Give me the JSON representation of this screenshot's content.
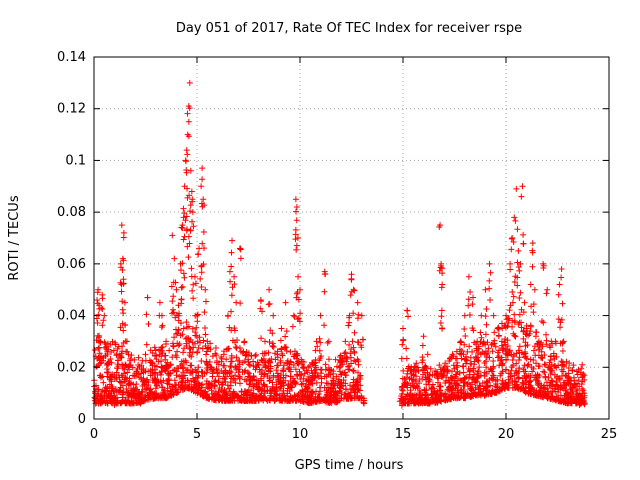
{
  "chart_data": {
    "type": "scatter",
    "title": "Day 051 of 2017, Rate Of TEC Index for receiver rspe",
    "xlabel": "GPS time / hours",
    "ylabel": "ROTI / TECUs",
    "xlim": [
      0,
      25
    ],
    "ylim": [
      0,
      0.14
    ],
    "x_ticks": [
      0,
      5,
      10,
      15,
      20,
      25
    ],
    "x_tick_labels": [
      "0",
      "5",
      "10",
      "15",
      "20",
      "25"
    ],
    "y_ticks": [
      0,
      0.02,
      0.04,
      0.06,
      0.08,
      0.1,
      0.12,
      0.14
    ],
    "y_tick_labels": [
      "0",
      "0.02",
      "0.04",
      "0.06",
      "0.08",
      "0.1",
      "0.12",
      "0.14"
    ],
    "grid": true,
    "marker": "plus",
    "color": "#ff0000",
    "data_gaps_hours": [
      [
        13.2,
        14.8
      ]
    ],
    "series": [
      {
        "points": [
          [
            0.05,
            0.01
          ],
          [
            0.15,
            0.046
          ],
          [
            0.2,
            0.05
          ],
          [
            0.25,
            0.044
          ],
          [
            0.3,
            0.03
          ],
          [
            0.4,
            0.048
          ],
          [
            0.5,
            0.04
          ],
          [
            0.6,
            0.028
          ],
          [
            0.7,
            0.022
          ],
          [
            0.8,
            0.016
          ],
          [
            0.9,
            0.012
          ],
          [
            1.0,
            0.009
          ],
          [
            1.1,
            0.018
          ],
          [
            1.2,
            0.028
          ],
          [
            1.3,
            0.06
          ],
          [
            1.35,
            0.075
          ],
          [
            1.4,
            0.062
          ],
          [
            1.45,
            0.072
          ],
          [
            1.5,
            0.045
          ],
          [
            1.6,
            0.03
          ],
          [
            1.7,
            0.02
          ],
          [
            1.8,
            0.014
          ],
          [
            2.0,
            0.012
          ],
          [
            2.2,
            0.01
          ],
          [
            2.4,
            0.018
          ],
          [
            2.5,
            0.025
          ],
          [
            2.6,
            0.047
          ],
          [
            2.8,
            0.022
          ],
          [
            3.0,
            0.015
          ],
          [
            3.2,
            0.045
          ],
          [
            3.3,
            0.04
          ],
          [
            3.5,
            0.03
          ],
          [
            3.6,
            0.02
          ],
          [
            3.8,
            0.071
          ],
          [
            3.9,
            0.062
          ],
          [
            4.0,
            0.05
          ],
          [
            4.1,
            0.044
          ],
          [
            4.2,
            0.06
          ],
          [
            4.3,
            0.075
          ],
          [
            4.35,
            0.078
          ],
          [
            4.4,
            0.09
          ],
          [
            4.45,
            0.1
          ],
          [
            4.5,
            0.104
          ],
          [
            4.55,
            0.11
          ],
          [
            4.6,
            0.121
          ],
          [
            4.65,
            0.13
          ],
          [
            4.7,
            0.096
          ],
          [
            4.75,
            0.088
          ],
          [
            4.8,
            0.08
          ],
          [
            4.9,
            0.055
          ],
          [
            5.0,
            0.04
          ],
          [
            5.1,
            0.066
          ],
          [
            5.2,
            0.09
          ],
          [
            5.25,
            0.097
          ],
          [
            5.3,
            0.085
          ],
          [
            5.4,
            0.05
          ],
          [
            5.5,
            0.03
          ],
          [
            5.7,
            0.02
          ],
          [
            5.9,
            0.015
          ],
          [
            6.1,
            0.012
          ],
          [
            6.3,
            0.025
          ],
          [
            6.5,
            0.04
          ],
          [
            6.6,
            0.057
          ],
          [
            6.7,
            0.069
          ],
          [
            6.8,
            0.055
          ],
          [
            6.9,
            0.045
          ],
          [
            7.1,
            0.066
          ],
          [
            7.3,
            0.03
          ],
          [
            7.5,
            0.022
          ],
          [
            7.7,
            0.015
          ],
          [
            7.9,
            0.02
          ],
          [
            8.1,
            0.046
          ],
          [
            8.3,
            0.03
          ],
          [
            8.5,
            0.05
          ],
          [
            8.7,
            0.04
          ],
          [
            8.9,
            0.025
          ],
          [
            9.1,
            0.035
          ],
          [
            9.3,
            0.045
          ],
          [
            9.5,
            0.02
          ],
          [
            9.7,
            0.04
          ],
          [
            9.8,
            0.085
          ],
          [
            9.85,
            0.082
          ],
          [
            9.9,
            0.07
          ],
          [
            10.0,
            0.05
          ],
          [
            10.2,
            0.02
          ],
          [
            10.4,
            0.012
          ],
          [
            10.6,
            0.015
          ],
          [
            10.8,
            0.03
          ],
          [
            11.0,
            0.04
          ],
          [
            11.2,
            0.057
          ],
          [
            11.4,
            0.03
          ],
          [
            11.6,
            0.015
          ],
          [
            11.8,
            0.01
          ],
          [
            12.0,
            0.022
          ],
          [
            12.2,
            0.03
          ],
          [
            12.4,
            0.04
          ],
          [
            12.5,
            0.056
          ],
          [
            12.6,
            0.05
          ],
          [
            12.8,
            0.045
          ],
          [
            13.0,
            0.04
          ],
          [
            13.1,
            0.008
          ],
          [
            14.9,
            0.008
          ],
          [
            15.0,
            0.035
          ],
          [
            15.2,
            0.042
          ],
          [
            15.4,
            0.02
          ],
          [
            15.6,
            0.012
          ],
          [
            15.8,
            0.01
          ],
          [
            16.0,
            0.032
          ],
          [
            16.2,
            0.025
          ],
          [
            16.4,
            0.012
          ],
          [
            16.6,
            0.01
          ],
          [
            16.8,
            0.075
          ],
          [
            16.85,
            0.06
          ],
          [
            16.9,
            0.052
          ],
          [
            17.0,
            0.02
          ],
          [
            17.2,
            0.015
          ],
          [
            17.4,
            0.012
          ],
          [
            17.6,
            0.02
          ],
          [
            17.8,
            0.03
          ],
          [
            18.0,
            0.04
          ],
          [
            18.2,
            0.055
          ],
          [
            18.4,
            0.047
          ],
          [
            18.6,
            0.03
          ],
          [
            18.8,
            0.04
          ],
          [
            19.0,
            0.05
          ],
          [
            19.2,
            0.06
          ],
          [
            19.4,
            0.04
          ],
          [
            19.6,
            0.035
          ],
          [
            19.8,
            0.03
          ],
          [
            20.0,
            0.04
          ],
          [
            20.2,
            0.06
          ],
          [
            20.3,
            0.07
          ],
          [
            20.4,
            0.078
          ],
          [
            20.5,
            0.089
          ],
          [
            20.6,
            0.065
          ],
          [
            20.7,
            0.06
          ],
          [
            20.8,
            0.09
          ],
          [
            20.9,
            0.045
          ],
          [
            21.0,
            0.035
          ],
          [
            21.2,
            0.052
          ],
          [
            21.3,
            0.068
          ],
          [
            21.4,
            0.05
          ],
          [
            21.6,
            0.03
          ],
          [
            21.8,
            0.06
          ],
          [
            22.0,
            0.05
          ],
          [
            22.2,
            0.03
          ],
          [
            22.4,
            0.03
          ],
          [
            22.6,
            0.052
          ],
          [
            22.7,
            0.058
          ],
          [
            22.8,
            0.03
          ],
          [
            23.0,
            0.015
          ],
          [
            23.2,
            0.012
          ],
          [
            23.4,
            0.01
          ],
          [
            23.6,
            0.008
          ],
          [
            23.7,
            0.021
          ],
          [
            23.8,
            0.01
          ]
        ],
        "baseline_envelope": [
          [
            0.0,
            0.006,
            0.03
          ],
          [
            0.5,
            0.006,
            0.03
          ],
          [
            1.0,
            0.006,
            0.03
          ],
          [
            1.5,
            0.006,
            0.028
          ],
          [
            2.0,
            0.006,
            0.024
          ],
          [
            2.5,
            0.007,
            0.026
          ],
          [
            3.0,
            0.008,
            0.028
          ],
          [
            3.5,
            0.008,
            0.03
          ],
          [
            4.0,
            0.01,
            0.035
          ],
          [
            4.5,
            0.012,
            0.04
          ],
          [
            5.0,
            0.01,
            0.035
          ],
          [
            5.5,
            0.008,
            0.03
          ],
          [
            6.0,
            0.007,
            0.028
          ],
          [
            6.5,
            0.007,
            0.028
          ],
          [
            7.0,
            0.007,
            0.028
          ],
          [
            7.5,
            0.007,
            0.026
          ],
          [
            8.0,
            0.007,
            0.028
          ],
          [
            8.5,
            0.007,
            0.028
          ],
          [
            9.0,
            0.007,
            0.028
          ],
          [
            9.5,
            0.007,
            0.028
          ],
          [
            10.0,
            0.007,
            0.024
          ],
          [
            10.5,
            0.006,
            0.022
          ],
          [
            11.0,
            0.007,
            0.024
          ],
          [
            11.5,
            0.006,
            0.022
          ],
          [
            12.0,
            0.007,
            0.026
          ],
          [
            12.5,
            0.008,
            0.03
          ],
          [
            13.0,
            0.008,
            0.02
          ],
          [
            14.9,
            0.006,
            0.018
          ],
          [
            15.5,
            0.006,
            0.022
          ],
          [
            16.0,
            0.006,
            0.022
          ],
          [
            16.5,
            0.006,
            0.02
          ],
          [
            17.0,
            0.007,
            0.022
          ],
          [
            17.5,
            0.008,
            0.026
          ],
          [
            18.0,
            0.008,
            0.028
          ],
          [
            18.5,
            0.009,
            0.03
          ],
          [
            19.0,
            0.009,
            0.032
          ],
          [
            19.5,
            0.01,
            0.034
          ],
          [
            20.0,
            0.012,
            0.04
          ],
          [
            20.5,
            0.012,
            0.045
          ],
          [
            21.0,
            0.01,
            0.04
          ],
          [
            21.5,
            0.009,
            0.034
          ],
          [
            22.0,
            0.008,
            0.03
          ],
          [
            22.5,
            0.007,
            0.026
          ],
          [
            23.0,
            0.006,
            0.022
          ],
          [
            23.5,
            0.006,
            0.02
          ],
          [
            23.8,
            0.006,
            0.018
          ]
        ]
      }
    ]
  }
}
